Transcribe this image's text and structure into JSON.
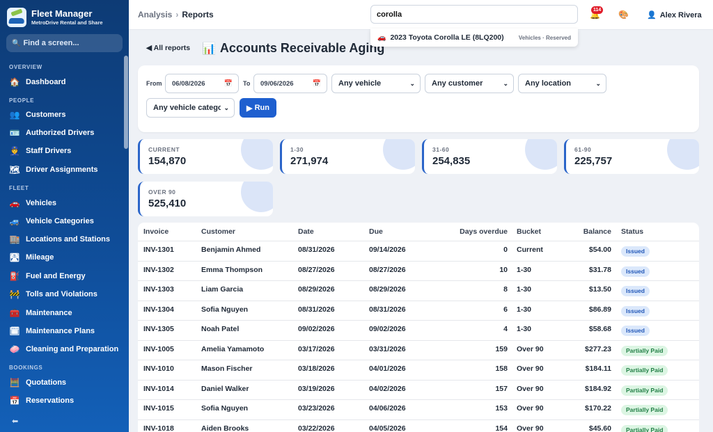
{
  "brand": {
    "title": "Fleet Manager",
    "subtitle": "MetroDrive Rental and Share"
  },
  "sidebar": {
    "search_label": "Find a screen...",
    "sections": [
      {
        "label": "OVERVIEW"
      },
      {
        "label": "PEOPLE"
      },
      {
        "label": "FLEET"
      },
      {
        "label": "BOOKINGS"
      }
    ],
    "items": [
      {
        "label": "Dashboard",
        "icon": "home-icon"
      },
      {
        "label": "Customers",
        "icon": "people-icon"
      },
      {
        "label": "Authorized Drivers",
        "icon": "id-card-icon"
      },
      {
        "label": "Staff Drivers",
        "icon": "staff-icon"
      },
      {
        "label": "Driver Assignments",
        "icon": "map-icon"
      },
      {
        "label": "Vehicles",
        "icon": "car-icon"
      },
      {
        "label": "Vehicle Categories",
        "icon": "car-category-icon"
      },
      {
        "label": "Locations and Stations",
        "icon": "building-icon"
      },
      {
        "label": "Mileage",
        "icon": "road-icon"
      },
      {
        "label": "Fuel and Energy",
        "icon": "fuel-icon"
      },
      {
        "label": "Tolls and Violations",
        "icon": "barrier-icon"
      },
      {
        "label": "Maintenance",
        "icon": "toolbox-icon"
      },
      {
        "label": "Maintenance Plans",
        "icon": "calendar-icon"
      },
      {
        "label": "Cleaning and Preparation",
        "icon": "soap-icon"
      },
      {
        "label": "Quotations",
        "icon": "abacus-icon"
      },
      {
        "label": "Reservations",
        "icon": "calendar-17-icon"
      }
    ]
  },
  "topbar": {
    "breadcrumb": {
      "parent": "Analysis",
      "current": "Reports"
    },
    "search_value": "corolla",
    "notification_count": "114",
    "user_name": "Alex Rivera"
  },
  "search_result": {
    "title": "2023 Toyota Corolla LE (8LQ200)",
    "meta": "Vehicles · Reserved"
  },
  "page": {
    "back_label": "All reports",
    "title": "Accounts Receivable Aging"
  },
  "filters": {
    "from_label": "From",
    "from_value": "06/08/2026",
    "to_label": "To",
    "to_value": "09/06/2026",
    "vehicle": "Any vehicle",
    "customer": "Any customer",
    "location": "Any location",
    "category": "Any vehicle category",
    "run_label": "Run"
  },
  "summary": [
    {
      "label": "CURRENT",
      "value": "154,870"
    },
    {
      "label": "1-30",
      "value": "271,974"
    },
    {
      "label": "31-60",
      "value": "254,835"
    },
    {
      "label": "61-90",
      "value": "225,757"
    },
    {
      "label": "OVER 90",
      "value": "525,410"
    }
  ],
  "table": {
    "headers": [
      "Invoice",
      "Customer",
      "Date",
      "Due",
      "Days overdue",
      "Bucket",
      "Balance",
      "Status"
    ],
    "rows": [
      [
        "INV-1301",
        "Benjamin Ahmed",
        "08/31/2026",
        "09/14/2026",
        "0",
        "Current",
        "$54.00",
        "Issued"
      ],
      [
        "INV-1302",
        "Emma Thompson",
        "08/27/2026",
        "08/27/2026",
        "10",
        "1-30",
        "$31.78",
        "Issued"
      ],
      [
        "INV-1303",
        "Liam Garcia",
        "08/29/2026",
        "08/29/2026",
        "8",
        "1-30",
        "$13.50",
        "Issued"
      ],
      [
        "INV-1304",
        "Sofia Nguyen",
        "08/31/2026",
        "08/31/2026",
        "6",
        "1-30",
        "$86.89",
        "Issued"
      ],
      [
        "INV-1305",
        "Noah Patel",
        "09/02/2026",
        "09/02/2026",
        "4",
        "1-30",
        "$58.68",
        "Issued"
      ],
      [
        "INV-1005",
        "Amelia Yamamoto",
        "03/17/2026",
        "03/31/2026",
        "159",
        "Over 90",
        "$277.23",
        "Partially Paid"
      ],
      [
        "INV-1010",
        "Mason Fischer",
        "03/18/2026",
        "04/01/2026",
        "158",
        "Over 90",
        "$184.11",
        "Partially Paid"
      ],
      [
        "INV-1014",
        "Daniel Walker",
        "03/19/2026",
        "04/02/2026",
        "157",
        "Over 90",
        "$184.92",
        "Partially Paid"
      ],
      [
        "INV-1015",
        "Sofia Nguyen",
        "03/23/2026",
        "04/06/2026",
        "153",
        "Over 90",
        "$170.22",
        "Partially Paid"
      ],
      [
        "INV-1018",
        "Aiden Brooks",
        "03/22/2026",
        "04/05/2026",
        "154",
        "Over 90",
        "$45.60",
        "Partially Paid"
      ]
    ]
  }
}
